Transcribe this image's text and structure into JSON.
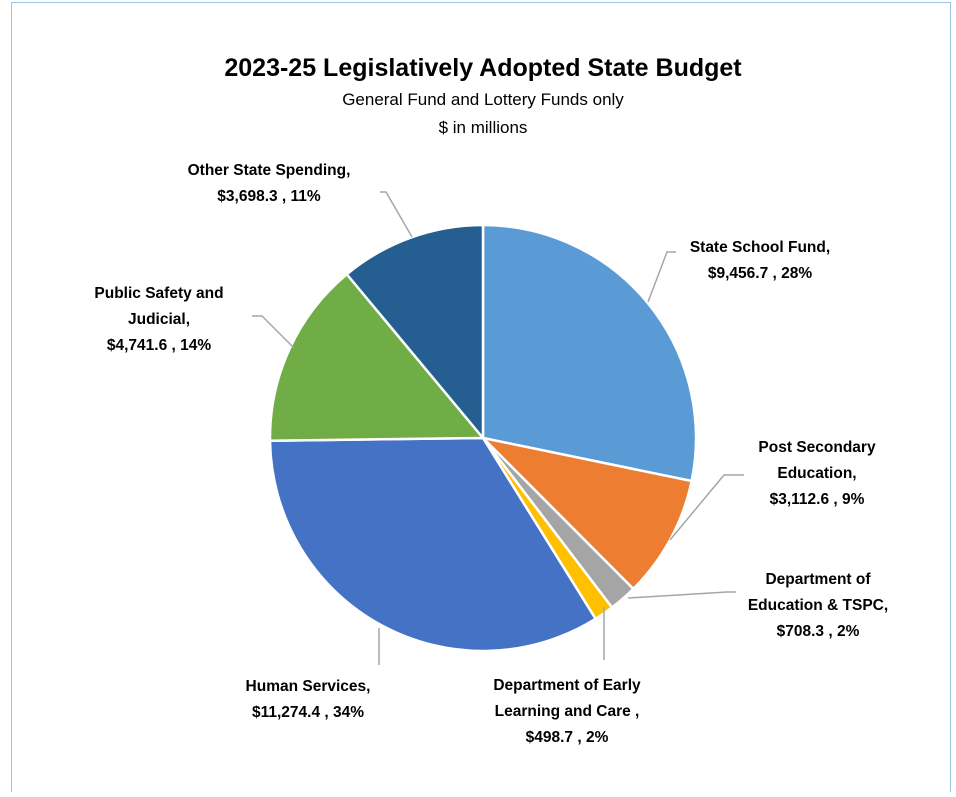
{
  "chart_data": {
    "type": "pie",
    "title": "2023-25 Legislatively Adopted State Budget",
    "subtitle": [
      "General Fund and Lottery Funds only",
      "$ in millions"
    ],
    "slices": [
      {
        "name": "State School Fund",
        "value": 9456.7,
        "label_lines": [
          "State School Fund,",
          "$9,456.7 , 28%"
        ],
        "color": "#5b9bd5"
      },
      {
        "name": "Post Secondary Education",
        "value": 3112.6,
        "label_lines": [
          "Post Secondary",
          "Education,",
          "$3,112.6 , 9%"
        ],
        "color": "#ed7d31"
      },
      {
        "name": "Department of Education & TSPC",
        "value": 708.3,
        "label_lines": [
          "Department of",
          "Education & TSPC,",
          "$708.3 , 2%"
        ],
        "color": "#a5a5a5"
      },
      {
        "name": "Department of Early Learning and Care",
        "value": 498.7,
        "label_lines": [
          "Department of Early",
          "Learning and Care ,",
          "$498.7 , 2%"
        ],
        "color": "#ffc000"
      },
      {
        "name": "Human Services",
        "value": 11274.4,
        "label_lines": [
          "Human Services,",
          "$11,274.4 , 34%"
        ],
        "color": "#4472c4"
      },
      {
        "name": "Public Safety and Judicial",
        "value": 4741.6,
        "label_lines": [
          "Public Safety and",
          "Judicial,",
          "$4,741.6 , 14%"
        ],
        "color": "#70ad47"
      },
      {
        "name": "Other State Spending",
        "value": 3698.3,
        "label_lines": [
          "Other State Spending,",
          "$3,698.3 , 11%"
        ],
        "color": "#255e91"
      }
    ]
  }
}
